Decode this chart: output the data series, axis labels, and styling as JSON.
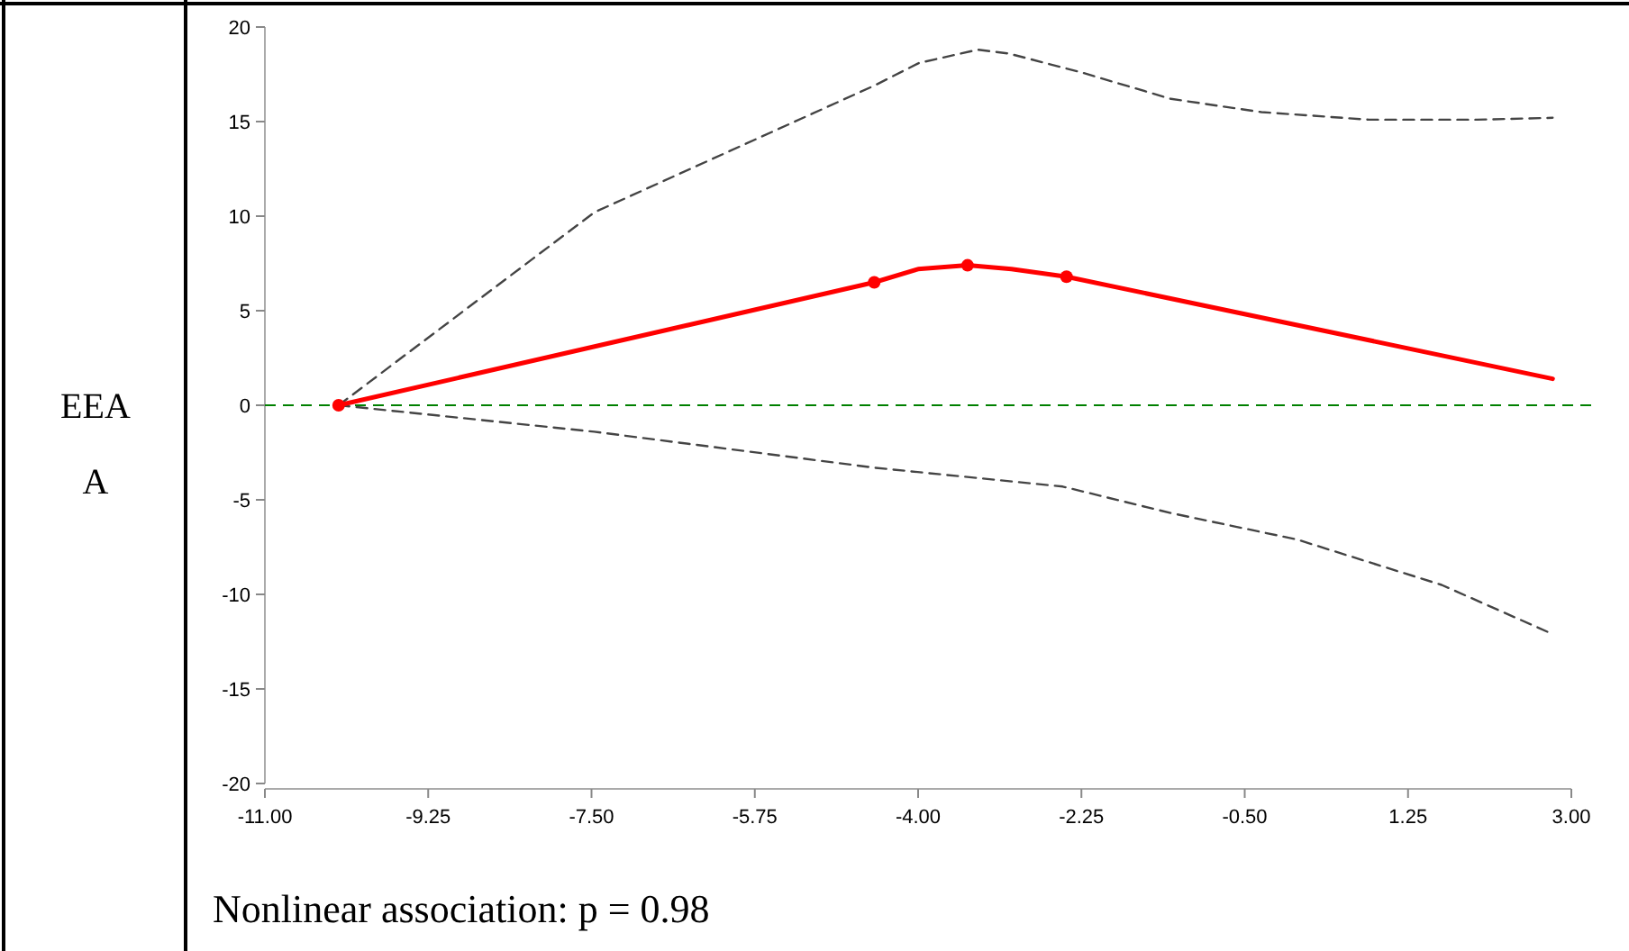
{
  "chart_data": {
    "type": "line",
    "ylabel": "EEAA",
    "annotations": [
      "Nonlinear association: p = 0.98"
    ],
    "xlim": [
      -11,
      3
    ],
    "xticks": [
      {
        "value": -11,
        "label": "-11.00"
      },
      {
        "value": -9.25,
        "label": "-9.25"
      },
      {
        "value": -7.5,
        "label": "-7.50"
      },
      {
        "value": -5.75,
        "label": "-5.75"
      },
      {
        "value": -4,
        "label": "-4.00"
      },
      {
        "value": -2.25,
        "label": "-2.25"
      },
      {
        "value": -0.5,
        "label": "-0.50"
      },
      {
        "value": 1.25,
        "label": "1.25"
      },
      {
        "value": 3,
        "label": "3.00"
      }
    ],
    "ylim": [
      -20,
      20
    ],
    "yticks": [
      -20,
      -15,
      -10,
      -5,
      0,
      5,
      10,
      15,
      20
    ],
    "grid": false,
    "ref_lines": [
      {
        "axis": "y",
        "value": 0,
        "color": "#008000",
        "line_style": "dashed"
      }
    ],
    "series": [
      {
        "color": "#444444",
        "line_style": "dashed",
        "marker": "none",
        "x": [
          -10.21,
          -7.47,
          -4.47,
          -3.99,
          -3.36,
          -3.03,
          -2.25,
          -1.29,
          -0.32,
          0.83,
          1.99,
          2.8
        ],
        "values": [
          0,
          10.2,
          16.9,
          18.1,
          18.8,
          18.6,
          17.6,
          16.2,
          15.5,
          15.1,
          15.1,
          15.2
        ]
      },
      {
        "color": "#444444",
        "line_style": "dashed",
        "marker": "none",
        "x": [
          -10.21,
          -7.47,
          -4.47,
          -2.45,
          -1.29,
          0.06,
          1.61,
          2.8
        ],
        "values": [
          0,
          -1.4,
          -3.3,
          -4.3,
          -5.7,
          -7.1,
          -9.5,
          -12.1
        ]
      },
      {
        "color": "#ff0000",
        "line_style": "solid",
        "marker": "none",
        "x": [
          -10.21,
          -4.47,
          -4,
          -3.47,
          -3,
          -2.41,
          2.8
        ],
        "values": [
          0,
          6.5,
          7.2,
          7.4,
          7.2,
          6.8,
          1.4
        ]
      },
      {
        "type": "scatter",
        "color": "#ff0000",
        "marker": "circle",
        "x": [
          -10.21,
          -4.47,
          -3.47,
          -2.41
        ],
        "values": [
          0,
          6.5,
          7.4,
          6.8
        ]
      }
    ]
  }
}
